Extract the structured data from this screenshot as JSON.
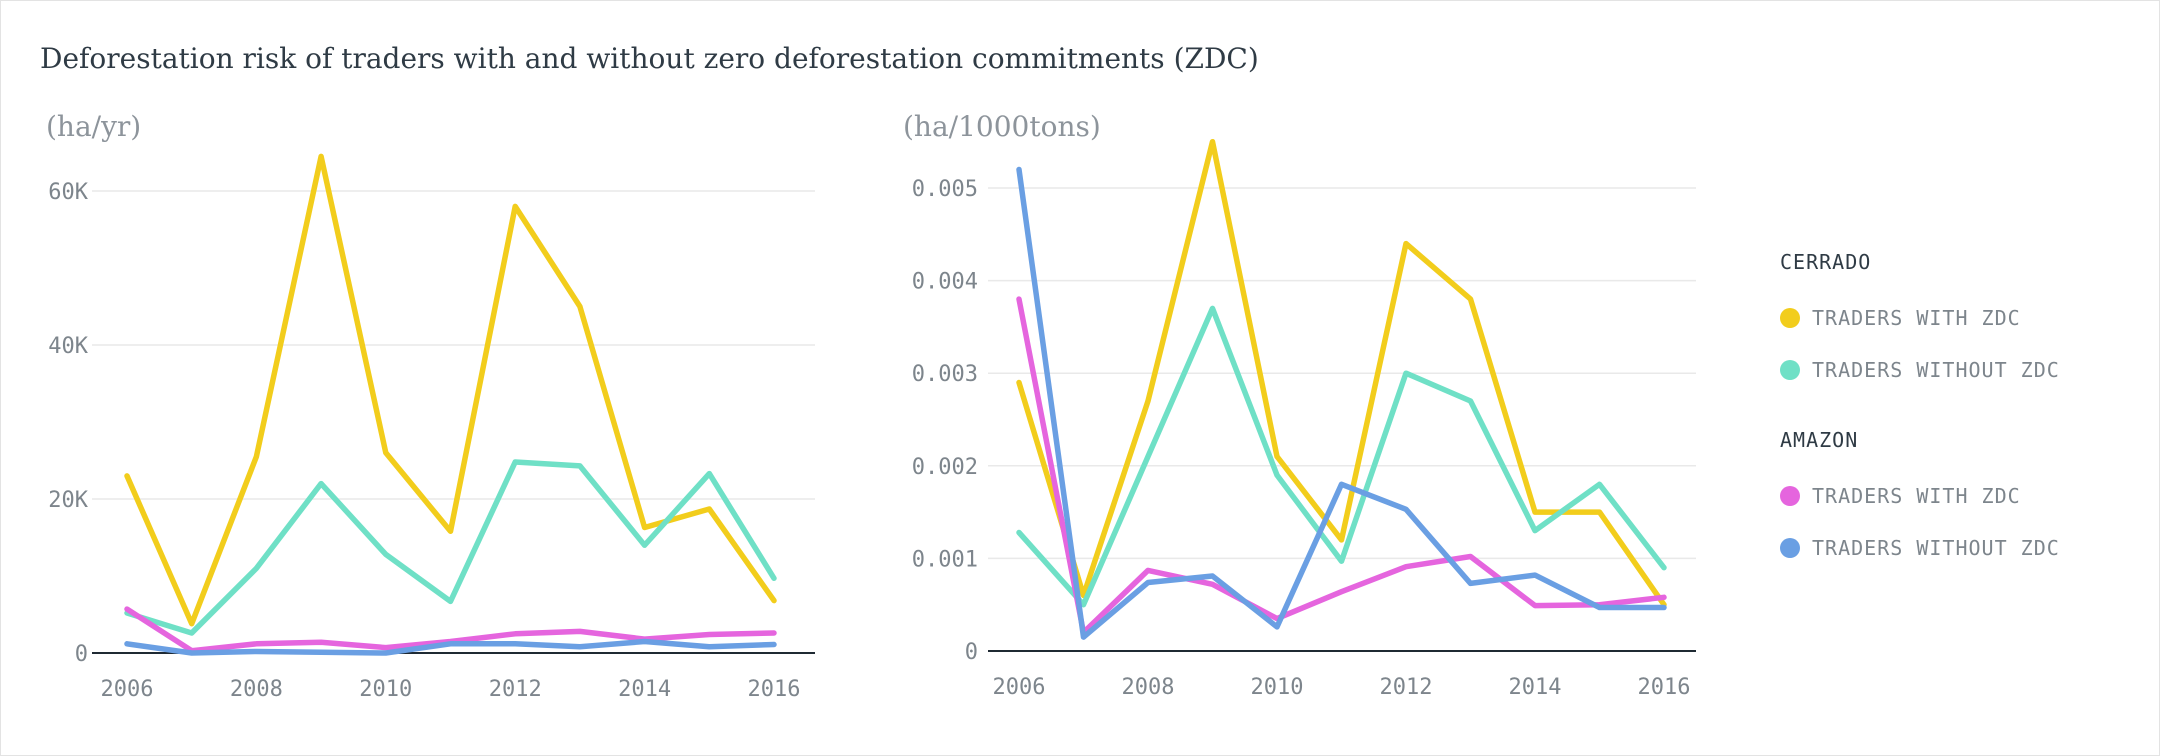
{
  "title": "Deforestation risk of traders with and without zero deforestation commitments (ZDC)",
  "colors": {
    "cerrado_with": "#f2cd1c",
    "cerrado_without": "#6fe0c6",
    "amazon_with": "#e565de",
    "amazon_without": "#6a9fe3"
  },
  "legend": {
    "groups": [
      {
        "title": "CERRADO",
        "items": [
          {
            "label": "TRADERS WITH ZDC",
            "color": "#f2cd1c"
          },
          {
            "label": "TRADERS WITHOUT ZDC",
            "color": "#6fe0c6"
          }
        ]
      },
      {
        "title": "AMAZON",
        "items": [
          {
            "label": "TRADERS WITH ZDC",
            "color": "#e565de"
          },
          {
            "label": "TRADERS WITHOUT ZDC",
            "color": "#6a9fe3"
          }
        ]
      }
    ]
  },
  "chart_data": [
    {
      "type": "line",
      "unit": "(ha/yr)",
      "x": [
        2006,
        2007,
        2008,
        2009,
        2010,
        2011,
        2012,
        2013,
        2014,
        2015,
        2016
      ],
      "ylim": [
        0,
        60000
      ],
      "yticks": [
        0,
        20000,
        40000,
        60000
      ],
      "ytick_labels": [
        "0",
        "20K",
        "40K",
        "60K"
      ],
      "xticks": [
        2006,
        2008,
        2010,
        2012,
        2014,
        2016
      ],
      "series": [
        {
          "name": "Cerrado - Traders with ZDC",
          "color": "#f2cd1c",
          "values": [
            23000,
            3800,
            25500,
            64500,
            26000,
            15800,
            58000,
            45000,
            16300,
            18700,
            6800
          ]
        },
        {
          "name": "Cerrado - Traders without ZDC",
          "color": "#6fe0c6",
          "values": [
            5200,
            2600,
            11000,
            22000,
            12800,
            6700,
            24800,
            24300,
            14000,
            23300,
            9700
          ]
        },
        {
          "name": "Amazon - Traders with ZDC",
          "color": "#e565de",
          "values": [
            5700,
            300,
            1200,
            1400,
            700,
            1500,
            2500,
            2800,
            1800,
            2400,
            2600
          ]
        },
        {
          "name": "Amazon - Traders without ZDC",
          "color": "#6a9fe3",
          "values": [
            1200,
            0,
            200,
            100,
            0,
            1200,
            1200,
            800,
            1500,
            800,
            1100
          ]
        }
      ]
    },
    {
      "type": "line",
      "unit": "(ha/1000tons)",
      "x": [
        2006,
        2007,
        2008,
        2009,
        2010,
        2011,
        2012,
        2013,
        2014,
        2015,
        2016
      ],
      "ylim": [
        0,
        0.005
      ],
      "yticks": [
        0,
        0.001,
        0.002,
        0.003,
        0.004,
        0.005
      ],
      "ytick_labels": [
        "0",
        "0.001",
        "0.002",
        "0.003",
        "0.004",
        "0.005"
      ],
      "xticks": [
        2006,
        2008,
        2010,
        2012,
        2014,
        2016
      ],
      "series": [
        {
          "name": "Cerrado - Traders with ZDC",
          "color": "#f2cd1c",
          "values": [
            0.0029,
            0.0006,
            0.0027,
            0.0055,
            0.0021,
            0.0012,
            0.0044,
            0.0038,
            0.0015,
            0.0015,
            0.0005
          ]
        },
        {
          "name": "Cerrado - Traders without ZDC",
          "color": "#6fe0c6",
          "values": [
            0.00128,
            0.0005,
            0.0021,
            0.0037,
            0.0019,
            0.00097,
            0.003,
            0.0027,
            0.0013,
            0.0018,
            0.0009
          ]
        },
        {
          "name": "Amazon - Traders with ZDC",
          "color": "#e565de",
          "values": [
            0.0038,
            0.0002,
            0.00087,
            0.00072,
            0.00035,
            0.00064,
            0.00091,
            0.00102,
            0.00049,
            0.0005,
            0.00058
          ]
        },
        {
          "name": "Amazon - Traders without ZDC",
          "color": "#6a9fe3",
          "values": [
            0.0052,
            0.00015,
            0.00074,
            0.00081,
            0.00026,
            0.0018,
            0.00153,
            0.00073,
            0.00082,
            0.00047,
            0.00047
          ]
        }
      ]
    }
  ]
}
